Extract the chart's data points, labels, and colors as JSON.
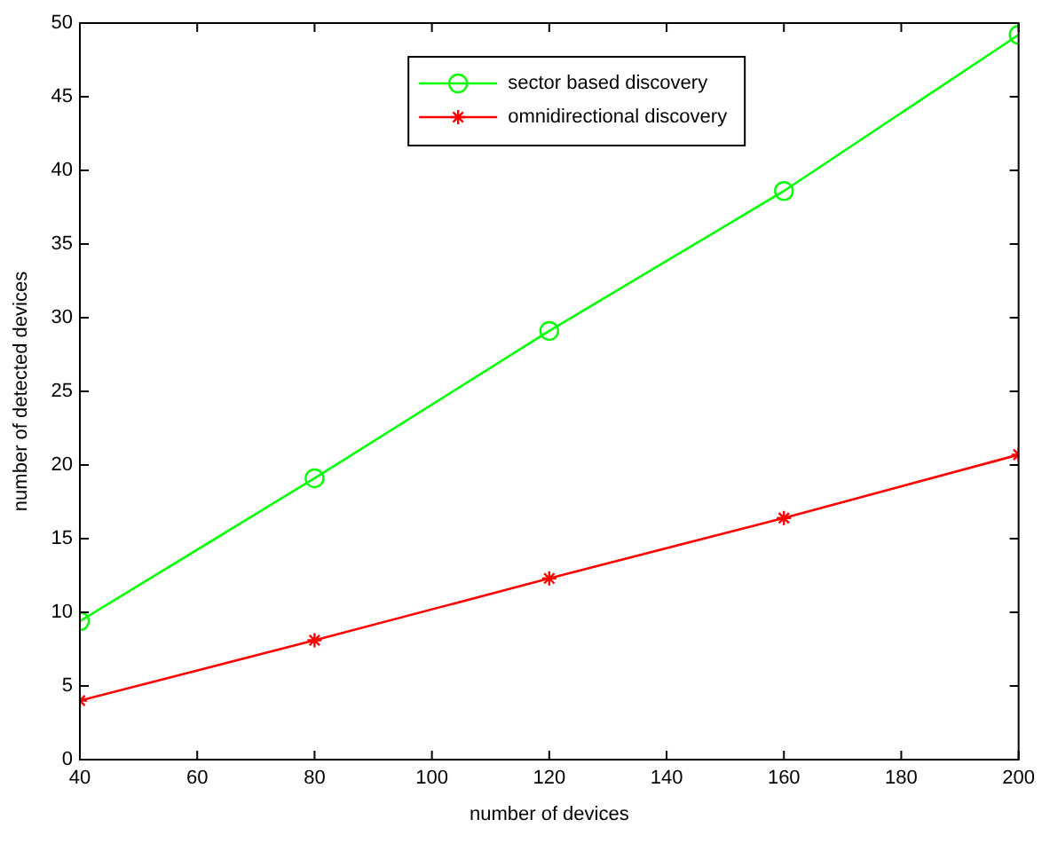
{
  "chart_data": {
    "type": "line",
    "xlabel": "number of devices",
    "ylabel": "number of detected devices",
    "x": [
      40,
      80,
      120,
      160,
      200
    ],
    "series": [
      {
        "name": "sector based discovery",
        "color": "#00ff00",
        "marker": "circle",
        "values": [
          9.4,
          19.1,
          29.1,
          38.6,
          49.2
        ]
      },
      {
        "name": "omnidirectional discovery",
        "color": "#ff0000",
        "marker": "cross",
        "values": [
          4.0,
          8.1,
          12.3,
          16.4,
          20.7
        ]
      }
    ],
    "xlim": [
      40,
      200
    ],
    "xticks": [
      40,
      60,
      80,
      100,
      120,
      140,
      160,
      180,
      200
    ],
    "ylim": [
      0,
      50
    ],
    "yticks": [
      0,
      5,
      10,
      15,
      20,
      25,
      30,
      35,
      40,
      45,
      50
    ],
    "grid": false,
    "legend": "top right",
    "line_style": "solid"
  }
}
